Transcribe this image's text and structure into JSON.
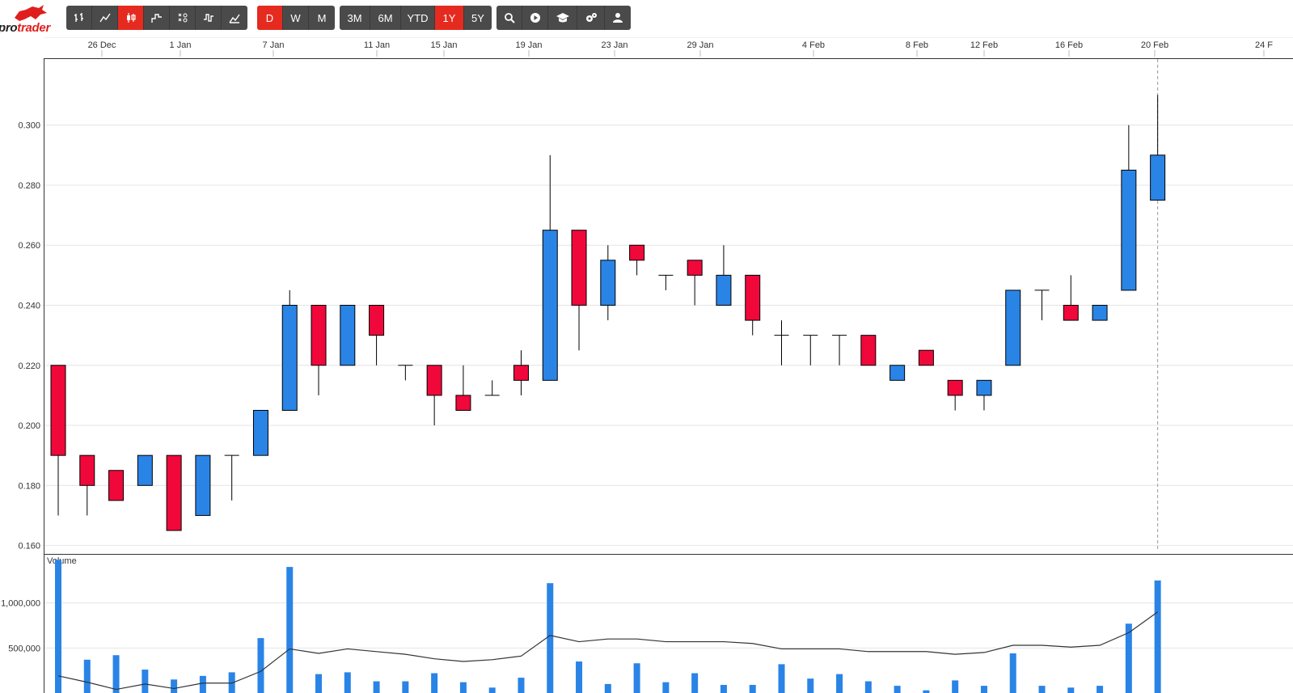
{
  "app": {
    "logo_text_a": "pro",
    "logo_text_b": "trader",
    "colors": {
      "accent": "#e52b1f",
      "toolbar_bg": "#4a4a4a",
      "toolbar_text": "#ffffff"
    }
  },
  "toolbar": {
    "chart_types": [
      {
        "name": "ohlc-chart-button",
        "icon": "ohlc-icon",
        "active": false
      },
      {
        "name": "line-chart-button",
        "icon": "line-chart-icon",
        "active": false
      },
      {
        "name": "candlestick-chart-button",
        "icon": "candlestick-icon",
        "active": true
      },
      {
        "name": "step-chart-button",
        "icon": "step-chart-icon",
        "active": false
      },
      {
        "name": "point-figure-chart-button",
        "icon": "point-figure-icon",
        "active": false
      },
      {
        "name": "kagi-chart-button",
        "icon": "kagi-icon",
        "active": false
      },
      {
        "name": "indicator-chart-button",
        "icon": "indicator-icon",
        "active": false
      }
    ],
    "intervals": [
      {
        "label": "D",
        "active": true
      },
      {
        "label": "W",
        "active": false
      },
      {
        "label": "M",
        "active": false
      }
    ],
    "ranges": [
      {
        "label": "3M",
        "active": false
      },
      {
        "label": "6M",
        "active": false
      },
      {
        "label": "YTD",
        "active": false
      },
      {
        "label": "1Y",
        "active": true
      },
      {
        "label": "5Y",
        "active": false
      }
    ],
    "tools": [
      {
        "name": "search-button",
        "icon": "search-icon"
      },
      {
        "name": "play-button",
        "icon": "play-icon"
      },
      {
        "name": "education-button",
        "icon": "graduation-cap-icon"
      },
      {
        "name": "settings-button",
        "icon": "gears-icon"
      },
      {
        "name": "user-button",
        "icon": "user-icon"
      }
    ]
  },
  "chart_data": {
    "type": "candlestick",
    "x_tick_labels": [
      "26 Dec",
      "1 Jan",
      "7 Jan",
      "11 Jan",
      "15 Jan",
      "19 Jan",
      "23 Jan",
      "29 Jan",
      "4 Feb",
      "8 Feb",
      "12 Feb",
      "16 Feb",
      "20 Feb",
      "24 F"
    ],
    "y_ticks": [
      "0.160",
      "0.180",
      "0.200",
      "0.220",
      "0.240",
      "0.260",
      "0.280",
      "0.300"
    ],
    "ylim": [
      0.158,
      0.322
    ],
    "colors": {
      "up": "#2a84e6",
      "down": "#f0083b"
    },
    "candles": [
      {
        "o": 0.22,
        "h": 0.22,
        "l": 0.17,
        "c": 0.19
      },
      {
        "o": 0.19,
        "h": 0.19,
        "l": 0.17,
        "c": 0.18
      },
      {
        "o": 0.185,
        "h": 0.185,
        "l": 0.175,
        "c": 0.175
      },
      {
        "o": 0.18,
        "h": 0.19,
        "l": 0.18,
        "c": 0.19
      },
      {
        "o": 0.19,
        "h": 0.19,
        "l": 0.165,
        "c": 0.165
      },
      {
        "o": 0.17,
        "h": 0.19,
        "l": 0.17,
        "c": 0.19
      },
      {
        "o": 0.19,
        "h": 0.19,
        "l": 0.175,
        "c": 0.19
      },
      {
        "o": 0.19,
        "h": 0.205,
        "l": 0.19,
        "c": 0.205
      },
      {
        "o": 0.205,
        "h": 0.245,
        "l": 0.205,
        "c": 0.24
      },
      {
        "o": 0.24,
        "h": 0.24,
        "l": 0.21,
        "c": 0.22
      },
      {
        "o": 0.22,
        "h": 0.24,
        "l": 0.22,
        "c": 0.24
      },
      {
        "o": 0.24,
        "h": 0.24,
        "l": 0.22,
        "c": 0.23
      },
      {
        "o": 0.22,
        "h": 0.22,
        "l": 0.215,
        "c": 0.22
      },
      {
        "o": 0.22,
        "h": 0.22,
        "l": 0.2,
        "c": 0.21
      },
      {
        "o": 0.21,
        "h": 0.22,
        "l": 0.205,
        "c": 0.205
      },
      {
        "o": 0.21,
        "h": 0.215,
        "l": 0.21,
        "c": 0.21
      },
      {
        "o": 0.22,
        "h": 0.225,
        "l": 0.21,
        "c": 0.215
      },
      {
        "o": 0.215,
        "h": 0.29,
        "l": 0.215,
        "c": 0.265
      },
      {
        "o": 0.265,
        "h": 0.265,
        "l": 0.225,
        "c": 0.24
      },
      {
        "o": 0.24,
        "h": 0.26,
        "l": 0.235,
        "c": 0.255
      },
      {
        "o": 0.26,
        "h": 0.26,
        "l": 0.25,
        "c": 0.255
      },
      {
        "o": 0.25,
        "h": 0.25,
        "l": 0.245,
        "c": 0.25
      },
      {
        "o": 0.255,
        "h": 0.255,
        "l": 0.24,
        "c": 0.25
      },
      {
        "o": 0.24,
        "h": 0.26,
        "l": 0.24,
        "c": 0.25
      },
      {
        "o": 0.25,
        "h": 0.25,
        "l": 0.23,
        "c": 0.235
      },
      {
        "o": 0.23,
        "h": 0.235,
        "l": 0.22,
        "c": 0.23
      },
      {
        "o": 0.23,
        "h": 0.23,
        "l": 0.22,
        "c": 0.23
      },
      {
        "o": 0.23,
        "h": 0.23,
        "l": 0.22,
        "c": 0.23
      },
      {
        "o": 0.23,
        "h": 0.23,
        "l": 0.22,
        "c": 0.22
      },
      {
        "o": 0.215,
        "h": 0.22,
        "l": 0.215,
        "c": 0.22
      },
      {
        "o": 0.225,
        "h": 0.225,
        "l": 0.22,
        "c": 0.22
      },
      {
        "o": 0.215,
        "h": 0.215,
        "l": 0.205,
        "c": 0.21
      },
      {
        "o": 0.21,
        "h": 0.215,
        "l": 0.205,
        "c": 0.215
      },
      {
        "o": 0.22,
        "h": 0.245,
        "l": 0.22,
        "c": 0.245
      },
      {
        "o": 0.245,
        "h": 0.245,
        "l": 0.235,
        "c": 0.245
      },
      {
        "o": 0.24,
        "h": 0.25,
        "l": 0.235,
        "c": 0.235
      },
      {
        "o": 0.235,
        "h": 0.24,
        "l": 0.235,
        "c": 0.24
      },
      {
        "o": 0.245,
        "h": 0.3,
        "l": 0.245,
        "c": 0.285
      },
      {
        "o": 0.275,
        "h": 0.31,
        "l": 0.275,
        "c": 0.29
      }
    ],
    "volume": {
      "label": "Volume",
      "y_ticks": [
        "500,000",
        "1,000,000"
      ],
      "ylim": [
        0,
        1500000
      ],
      "values": [
        1480000,
        370000,
        420000,
        260000,
        150000,
        190000,
        230000,
        610000,
        1400000,
        210000,
        230000,
        130000,
        130000,
        220000,
        120000,
        60000,
        170000,
        1220000,
        350000,
        100000,
        330000,
        120000,
        220000,
        90000,
        90000,
        320000,
        160000,
        210000,
        130000,
        80000,
        30000,
        140000,
        80000,
        440000,
        80000,
        60000,
        80000,
        770000,
        1250000
      ],
      "moving_average": [
        190000,
        120000,
        40000,
        100000,
        50000,
        110000,
        110000,
        240000,
        490000,
        440000,
        490000,
        460000,
        430000,
        380000,
        350000,
        370000,
        410000,
        640000,
        570000,
        600000,
        600000,
        570000,
        570000,
        570000,
        550000,
        490000,
        490000,
        490000,
        460000,
        460000,
        460000,
        430000,
        450000,
        530000,
        530000,
        510000,
        530000,
        670000,
        900000
      ]
    }
  }
}
